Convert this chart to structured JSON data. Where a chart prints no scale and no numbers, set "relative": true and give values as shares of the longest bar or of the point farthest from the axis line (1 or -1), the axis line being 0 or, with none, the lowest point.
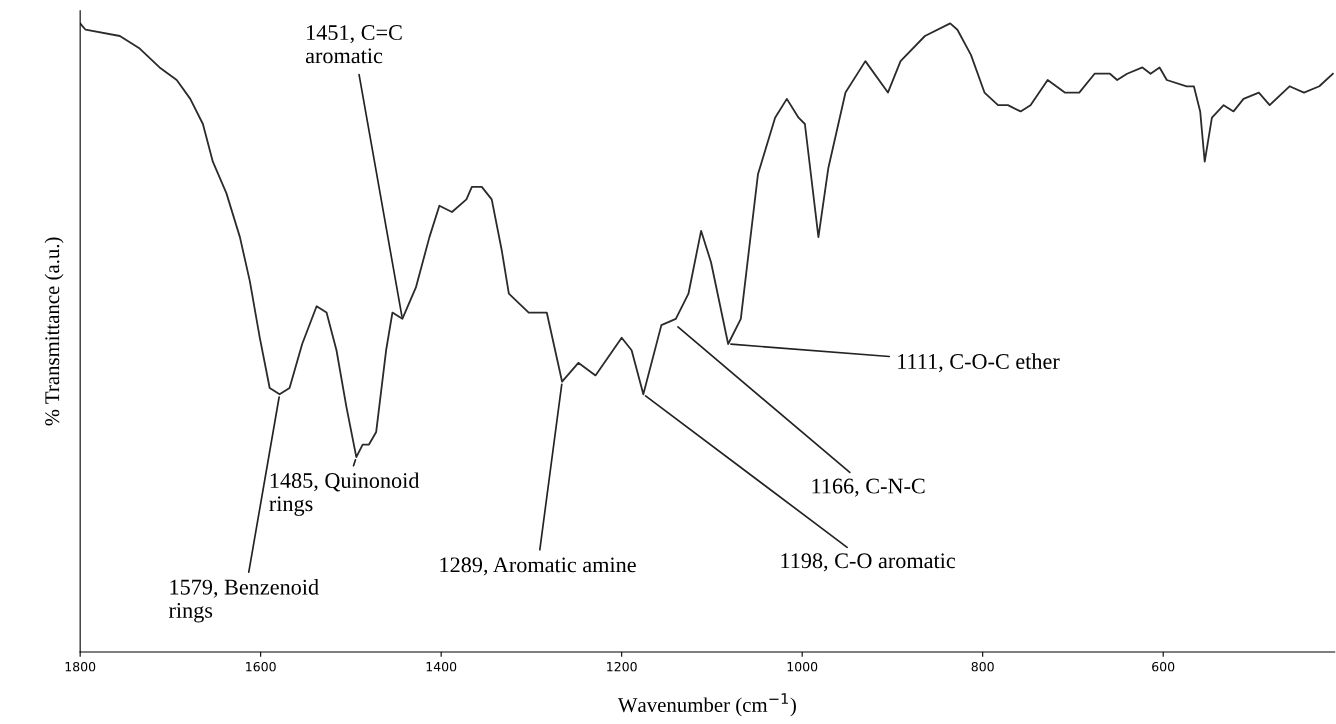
{
  "chart_data": {
    "type": "line",
    "relative": true,
    "xlabel": "Wavenumber (cm$^{−1}$)",
    "ylabel": "% Transmittance (a.u.)",
    "xlim": [
      1800,
      410
    ],
    "xticks": [
      1800,
      1600,
      1400,
      1200,
      1000,
      800,
      600
    ],
    "grid": false,
    "legend": false,
    "marker": "none",
    "line_style": "solid",
    "x": [
      1800,
      1794,
      1756,
      1734,
      1712,
      1693,
      1678,
      1664,
      1653,
      1638,
      1623,
      1612,
      1601,
      1590,
      1579,
      1568,
      1554,
      1538,
      1527,
      1516,
      1505,
      1494,
      1487,
      1480,
      1472,
      1461,
      1454,
      1443,
      1428,
      1413,
      1402,
      1388,
      1372,
      1366,
      1355,
      1344,
      1333,
      1325,
      1303,
      1283,
      1266,
      1248,
      1229,
      1200,
      1189,
      1176,
      1156,
      1140,
      1126,
      1112,
      1101,
      1082,
      1068,
      1049,
      1030,
      1017,
      1004,
      997,
      982,
      971,
      952,
      930,
      905,
      891,
      864,
      836,
      828,
      813,
      798,
      783,
      772,
      758,
      747,
      728,
      709,
      693,
      676,
      659,
      651,
      640,
      623,
      614,
      604,
      596,
      574,
      566,
      559,
      554,
      546,
      533,
      522,
      511,
      494,
      482,
      460,
      444,
      427,
      412
    ],
    "series": [
      {
        "color": "#2b2b2b",
        "values": [
          1.0,
          0.99,
          0.98,
          0.96,
          0.93,
          0.91,
          0.88,
          0.84,
          0.78,
          0.73,
          0.66,
          0.59,
          0.5,
          0.42,
          0.41,
          0.42,
          0.49,
          0.55,
          0.54,
          0.48,
          0.39,
          0.31,
          0.33,
          0.33,
          0.35,
          0.48,
          0.54,
          0.53,
          0.58,
          0.66,
          0.71,
          0.7,
          0.72,
          0.74,
          0.74,
          0.72,
          0.64,
          0.57,
          0.54,
          0.54,
          0.43,
          0.46,
          0.44,
          0.5,
          0.48,
          0.41,
          0.52,
          0.53,
          0.57,
          0.67,
          0.62,
          0.49,
          0.53,
          0.76,
          0.85,
          0.88,
          0.85,
          0.84,
          0.66,
          0.77,
          0.89,
          0.94,
          0.89,
          0.94,
          0.98,
          1.0,
          0.99,
          0.95,
          0.89,
          0.87,
          0.87,
          0.86,
          0.87,
          0.91,
          0.89,
          0.89,
          0.92,
          0.92,
          0.91,
          0.92,
          0.93,
          0.92,
          0.93,
          0.91,
          0.9,
          0.9,
          0.86,
          0.78,
          0.85,
          0.87,
          0.86,
          0.88,
          0.89,
          0.87,
          0.9,
          0.89,
          0.9,
          0.92
        ]
      }
    ],
    "annotations": [
      {
        "text": "1579, Benzenoid\nrings",
        "x": 1579,
        "y": 0.41
      },
      {
        "text": "1485, Quinonoid\nrings",
        "x": 1494,
        "y": 0.31
      },
      {
        "text": "1451, C=C\naromatic",
        "x": 1443,
        "y": 0.53
      },
      {
        "text": "1289, Aromatic amine",
        "x": 1266,
        "y": 0.43
      },
      {
        "text": "1198, C-O aromatic",
        "x": 1176,
        "y": 0.41
      },
      {
        "text": "1166, C-N-C",
        "x": 1140,
        "y": 0.52
      },
      {
        "text": "1111, C-O-C ether",
        "x": 1082,
        "y": 0.49
      }
    ]
  }
}
